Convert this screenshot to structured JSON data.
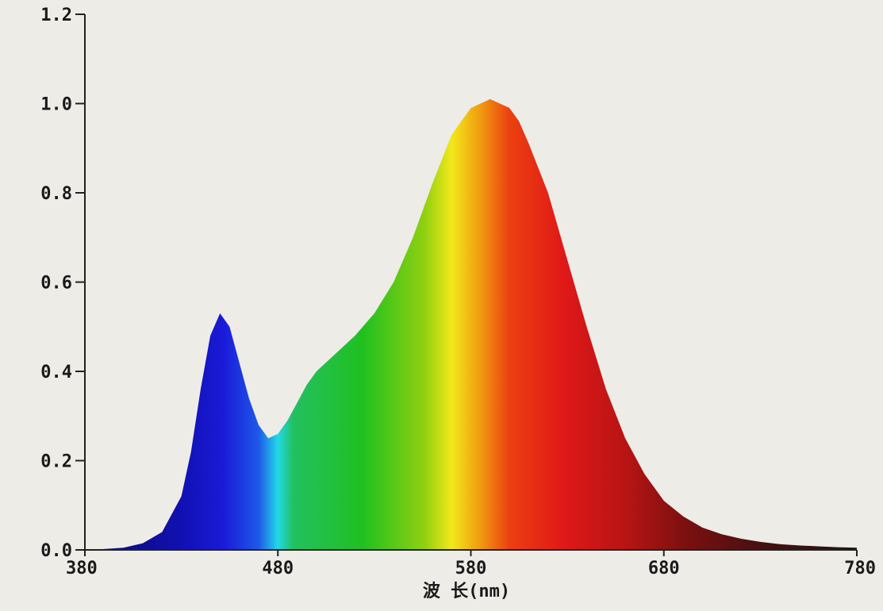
{
  "chart_data": {
    "type": "area",
    "title": "",
    "xlabel": "波 长(nm)",
    "ylabel": "",
    "xlim": [
      380,
      780
    ],
    "ylim": [
      0,
      1.2
    ],
    "x_ticks": [
      "380",
      "480",
      "580",
      "680",
      "780"
    ],
    "y_ticks": [
      "0.0",
      "0.2",
      "0.4",
      "0.6",
      "0.8",
      "1.0",
      "1.2"
    ],
    "grid": false,
    "fill": "visible-spectrum-gradient",
    "series": [
      {
        "x": [
          380,
          390,
          400,
          410,
          420,
          430,
          435,
          440,
          445,
          450,
          455,
          460,
          465,
          470,
          475,
          480,
          485,
          490,
          495,
          500,
          510,
          520,
          530,
          540,
          550,
          560,
          570,
          580,
          590,
          600,
          605,
          610,
          620,
          630,
          640,
          650,
          660,
          670,
          680,
          690,
          700,
          710,
          720,
          730,
          740,
          750,
          760,
          770,
          780
        ],
        "y": [
          0.0,
          0.002,
          0.005,
          0.015,
          0.04,
          0.12,
          0.22,
          0.36,
          0.48,
          0.53,
          0.5,
          0.42,
          0.34,
          0.28,
          0.25,
          0.26,
          0.29,
          0.33,
          0.37,
          0.4,
          0.44,
          0.48,
          0.53,
          0.6,
          0.7,
          0.82,
          0.93,
          0.99,
          1.01,
          0.99,
          0.96,
          0.91,
          0.8,
          0.65,
          0.5,
          0.36,
          0.25,
          0.17,
          0.11,
          0.075,
          0.05,
          0.035,
          0.025,
          0.018,
          0.013,
          0.01,
          0.008,
          0.006,
          0.005
        ]
      }
    ]
  }
}
